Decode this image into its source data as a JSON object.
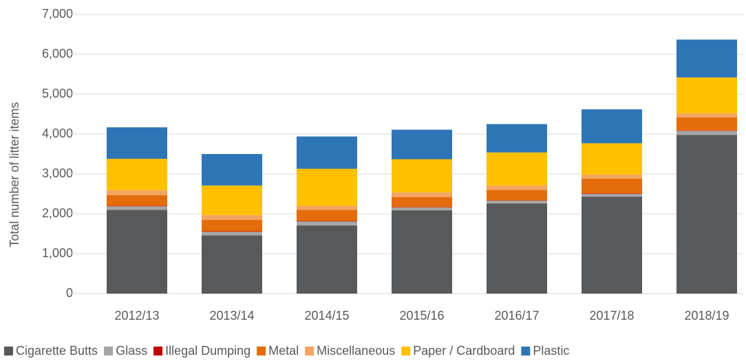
{
  "chart_data": {
    "type": "stacked_bar",
    "y_label": "Total number of litter items",
    "categories": [
      "2012/13",
      "2013/14",
      "2014/15",
      "2015/16",
      "2016/17",
      "2017/18",
      "2018/19"
    ],
    "series": [
      {
        "name": "Cigarette Butts",
        "color": "#58595b",
        "values": [
          2100,
          1460,
          1710,
          2090,
          2260,
          2430,
          3980
        ]
      },
      {
        "name": "Glass",
        "color": "#a5a5a5",
        "values": [
          90,
          90,
          100,
          70,
          70,
          70,
          100
        ]
      },
      {
        "name": "Illegal Dumping",
        "color": "#c00000",
        "values": [
          10,
          10,
          10,
          10,
          10,
          10,
          10
        ]
      },
      {
        "name": "Metal",
        "color": "#e46c0a",
        "values": [
          270,
          290,
          280,
          250,
          260,
          370,
          330
        ]
      },
      {
        "name": "Miscellaneous",
        "color": "#f4a460",
        "values": [
          120,
          120,
          100,
          120,
          110,
          100,
          100
        ]
      },
      {
        "name": "Paper / Cardboard",
        "color": "#ffc000",
        "values": [
          790,
          740,
          930,
          830,
          830,
          790,
          900
        ]
      },
      {
        "name": "Plastic",
        "color": "#2e75b6",
        "values": [
          790,
          790,
          810,
          740,
          710,
          850,
          950
        ]
      }
    ],
    "ylim": [
      0,
      7000
    ],
    "yticks": [
      0,
      {
        "value": 1000,
        "label": "1,000"
      },
      {
        "value": 2000,
        "label": "2,000"
      },
      {
        "value": 3000,
        "label": "3,000"
      },
      {
        "value": 4000,
        "label": "4,000"
      },
      {
        "value": 5000,
        "label": "5,000"
      },
      {
        "value": 6000,
        "label": "6,000"
      },
      {
        "value": 7000,
        "label": "7,000"
      }
    ],
    "grid": true,
    "legend": "bottom"
  }
}
